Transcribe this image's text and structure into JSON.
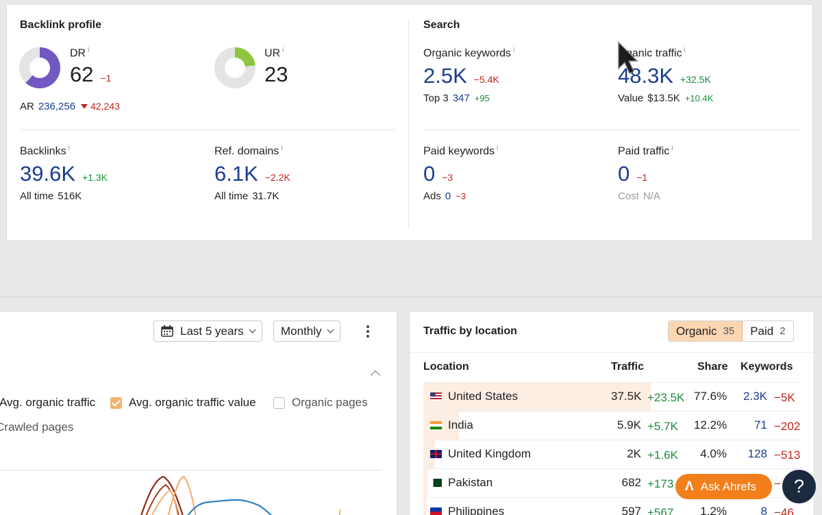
{
  "backlink_profile": {
    "title": "Backlink profile",
    "dr": {
      "label": "DR",
      "info": "i",
      "value": "62",
      "change": "−1",
      "ring_fraction": 0.62,
      "ring_color": "#7159c1"
    },
    "ur": {
      "label": "UR",
      "info": "i",
      "value": "23",
      "ring_fraction": 0.23,
      "ring_color": "#8cc63f"
    },
    "ar": {
      "label": "AR",
      "value": "236,256",
      "change": "42,243"
    },
    "backlinks": {
      "label": "Backlinks",
      "info": "i",
      "value": "39.6K",
      "change": "+1.3K",
      "sub_label": "All time",
      "sub_value": "516K"
    },
    "ref_domains": {
      "label": "Ref. domains",
      "info": "i",
      "value": "6.1K",
      "change": "−2.2K",
      "sub_label": "All time",
      "sub_value": "31.7K"
    }
  },
  "search": {
    "title": "Search",
    "organic_keywords": {
      "label": "Organic keywords",
      "info": "i",
      "value": "2.5K",
      "change": "−5.4K",
      "sub_label": "Top 3",
      "sub_value": "347",
      "sub_change": "+95"
    },
    "organic_traffic": {
      "label": "ganic traffic",
      "info": "i",
      "value": "48.3K",
      "change": "+32.5K",
      "sub_label": "Value",
      "sub_value": "$13.5K",
      "sub_change": "+10.4K"
    },
    "paid_keywords": {
      "label": "Paid keywords",
      "info": "i",
      "value": "0",
      "change": "−3",
      "sub_label": "Ads",
      "sub_value": "0",
      "sub_change": "−3"
    },
    "paid_traffic": {
      "label": "Paid traffic",
      "info": "i",
      "value": "0",
      "change": "−1",
      "sub_label": "Cost",
      "sub_value": "N/A"
    }
  },
  "chart_panel": {
    "period_label": "Last 5 years",
    "interval_label": "Monthly",
    "legend": [
      {
        "label": "Avg. organic traffic"
      },
      {
        "label": "Avg. organic traffic value",
        "checked": true,
        "color": "#f2b36d"
      },
      {
        "label": "Organic pages",
        "checked": false
      },
      {
        "label": "Crawled pages"
      }
    ]
  },
  "traffic_by_location": {
    "title": "Traffic by location",
    "tabs": [
      {
        "label": "Organic",
        "count": "35",
        "active": true
      },
      {
        "label": "Paid",
        "count": "2",
        "active": false
      }
    ],
    "columns": [
      "Location",
      "Traffic",
      "Share",
      "Keywords"
    ],
    "rows": [
      {
        "flag": "us",
        "location": "United States",
        "traffic": "37.5K",
        "traffic_change": "+23.5K",
        "share": "77.6%",
        "share_fraction": 0.776,
        "keywords": "2.3K",
        "keywords_change": "−5K"
      },
      {
        "flag": "in",
        "location": "India",
        "traffic": "5.9K",
        "traffic_change": "+5.7K",
        "share": "12.2%",
        "share_fraction": 0.122,
        "keywords": "71",
        "keywords_change": "−202"
      },
      {
        "flag": "gb",
        "location": "United Kingdom",
        "traffic": "2K",
        "traffic_change": "+1.6K",
        "share": "4.0%",
        "share_fraction": 0.04,
        "keywords": "128",
        "keywords_change": "−513"
      },
      {
        "flag": "pk",
        "location": "Pakistan",
        "traffic": "682",
        "traffic_change": "+173",
        "share": "",
        "share_fraction": 0.014,
        "keywords": "",
        "keywords_change": "−"
      },
      {
        "flag": "ph",
        "location": "Philippines",
        "traffic": "597",
        "traffic_change": "+567",
        "share": "1.2%",
        "share_fraction": 0.012,
        "keywords": "8",
        "keywords_change": "−46"
      }
    ]
  },
  "ask_button": {
    "logo": "Λ",
    "label": "Ask Ahrefs"
  },
  "help_button": {
    "label": "?"
  }
}
